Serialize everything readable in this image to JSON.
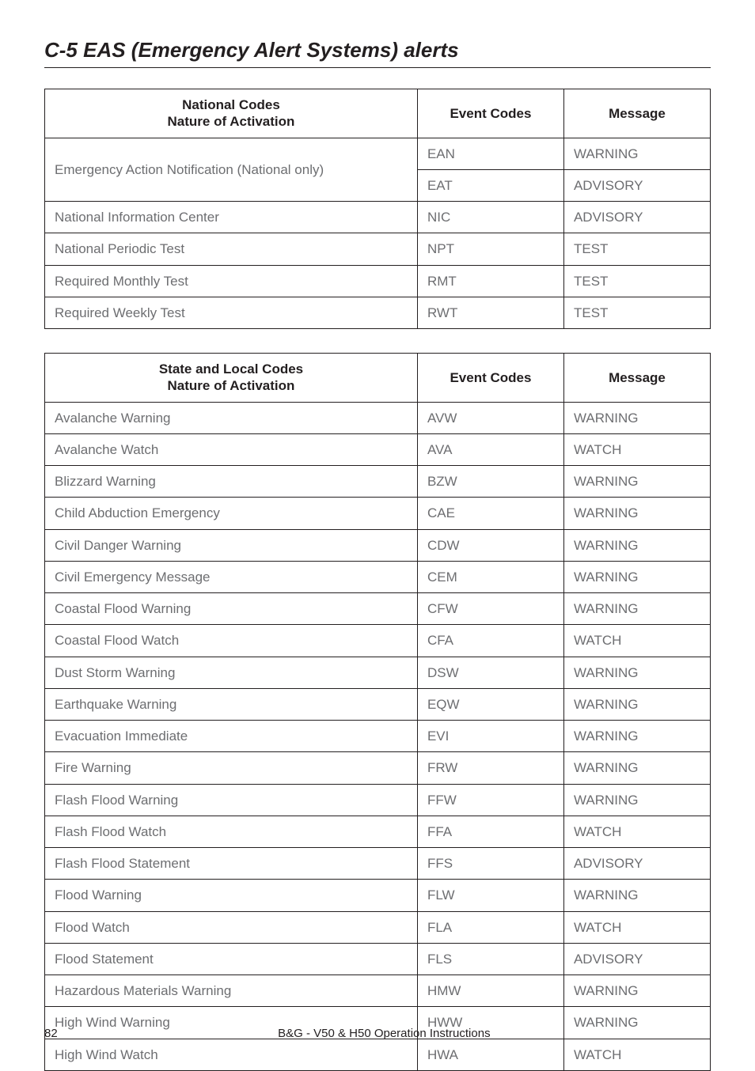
{
  "heading": "C-5 EAS (Emergency Alert Systems) alerts",
  "table1": {
    "headers": {
      "nature_line1": "National Codes",
      "nature_line2": "Nature  of Activation",
      "code": "Event Codes",
      "msg": "Message"
    },
    "rows": [
      {
        "nature": "Emergency Action Notification (National only)",
        "code": "EAN",
        "msg": "WARNING",
        "rowspan": 2
      },
      {
        "nature": "",
        "code": "EAT",
        "msg": "ADVISORY",
        "rowspan": 0
      },
      {
        "nature": "National Information Center",
        "code": "NIC",
        "msg": "ADVISORY",
        "rowspan": 1
      },
      {
        "nature": "National Periodic Test",
        "code": "NPT",
        "msg": "TEST",
        "rowspan": 1
      },
      {
        "nature": "Required Monthly Test",
        "code": "RMT",
        "msg": "TEST",
        "rowspan": 1
      },
      {
        "nature": "Required Weekly Test",
        "code": "RWT",
        "msg": "TEST",
        "rowspan": 1
      }
    ]
  },
  "table2": {
    "headers": {
      "nature_line1": "State and Local Codes",
      "nature_line2": "Nature  of Activation",
      "code": "Event Codes",
      "msg": "Message"
    },
    "rows": [
      {
        "nature": "Avalanche Warning",
        "code": "AVW",
        "msg": "WARNING"
      },
      {
        "nature": "Avalanche Watch",
        "code": "AVA",
        "msg": "WATCH"
      },
      {
        "nature": "Blizzard Warning",
        "code": "BZW",
        "msg": "WARNING"
      },
      {
        "nature": "Child Abduction Emergency",
        "code": "CAE",
        "msg": "WARNING"
      },
      {
        "nature": "Civil Danger Warning",
        "code": "CDW",
        "msg": "WARNING"
      },
      {
        "nature": "Civil Emergency Message",
        "code": "CEM",
        "msg": "WARNING"
      },
      {
        "nature": "Coastal Flood Warning",
        "code": "CFW",
        "msg": "WARNING"
      },
      {
        "nature": "Coastal Flood Watch",
        "code": "CFA",
        "msg": "WATCH"
      },
      {
        "nature": "Dust Storm Warning",
        "code": "DSW",
        "msg": "WARNING"
      },
      {
        "nature": "Earthquake Warning",
        "code": "EQW",
        "msg": "WARNING"
      },
      {
        "nature": "Evacuation Immediate",
        "code": "EVI",
        "msg": "WARNING"
      },
      {
        "nature": "Fire Warning",
        "code": "FRW",
        "msg": "WARNING"
      },
      {
        "nature": "Flash Flood Warning",
        "code": "FFW",
        "msg": "WARNING"
      },
      {
        "nature": "Flash Flood Watch",
        "code": "FFA",
        "msg": "WATCH"
      },
      {
        "nature": "Flash Flood Statement",
        "code": "FFS",
        "msg": "ADVISORY"
      },
      {
        "nature": "Flood Warning",
        "code": "FLW",
        "msg": "WARNING"
      },
      {
        "nature": "Flood Watch",
        "code": "FLA",
        "msg": "WATCH"
      },
      {
        "nature": "Flood Statement",
        "code": "FLS",
        "msg": "ADVISORY"
      },
      {
        "nature": "Hazardous Materials Warning",
        "code": "HMW",
        "msg": "WARNING"
      },
      {
        "nature": "High Wind Warning",
        "code": "HWW",
        "msg": "WARNING"
      },
      {
        "nature": "High Wind Watch",
        "code": "HWA",
        "msg": "WATCH"
      }
    ]
  },
  "footer": {
    "page": "82",
    "doc": "B&G - V50 & H50 Operation Instructions"
  }
}
